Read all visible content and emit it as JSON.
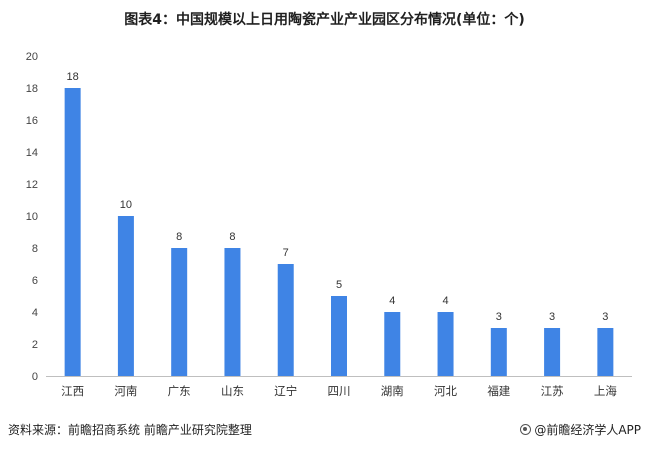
{
  "chart_data": {
    "type": "bar",
    "title": "图表4：中国规模以上日用陶瓷产业产业园区分布情况(单位：个)",
    "categories": [
      "江西",
      "河南",
      "广东",
      "山东",
      "辽宁",
      "四川",
      "湖南",
      "河北",
      "福建",
      "江苏",
      "上海"
    ],
    "values": [
      18,
      10,
      8,
      8,
      7,
      5,
      4,
      4,
      3,
      3,
      3
    ],
    "ylim": [
      0,
      20
    ],
    "yticks": [
      0,
      2,
      4,
      6,
      8,
      10,
      12,
      14,
      16,
      18,
      20
    ],
    "xlabel": "",
    "ylabel": "",
    "grid": false,
    "bar_color": "#3f84e5"
  },
  "footer": {
    "source": "资料来源：前瞻招商系统 前瞻产业研究院整理",
    "brand": "@前瞻经济学人APP"
  }
}
